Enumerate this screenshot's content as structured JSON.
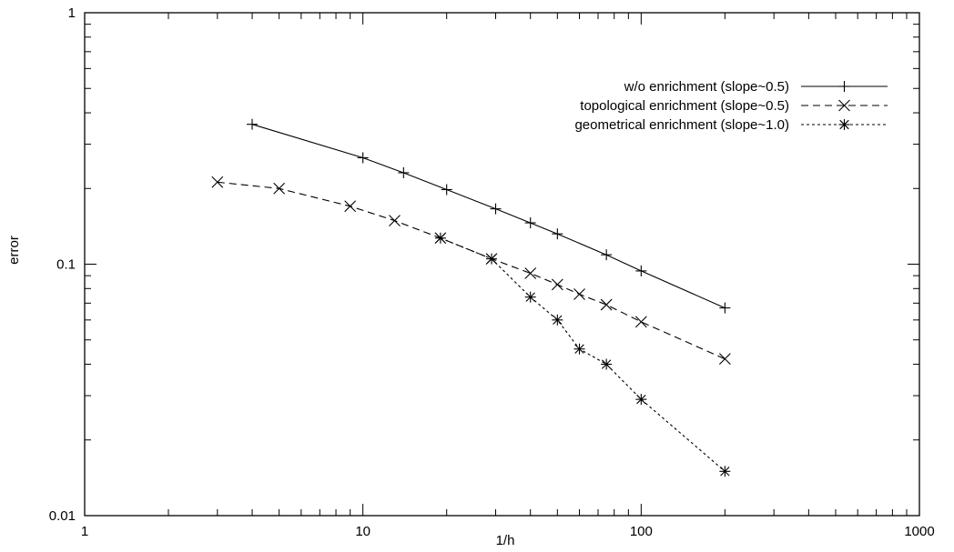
{
  "chart_data": {
    "type": "line",
    "title": "",
    "xlabel": "1/h",
    "ylabel": "error",
    "xscale": "log",
    "yscale": "log",
    "xlim": [
      1,
      1000
    ],
    "ylim": [
      0.01,
      1
    ],
    "grid": false,
    "legend_position": "top-right",
    "x_ticks": [
      {
        "value": 1,
        "label": "1"
      },
      {
        "value": 10,
        "label": "10"
      },
      {
        "value": 100,
        "label": "100"
      },
      {
        "value": 1000,
        "label": "1000"
      }
    ],
    "y_ticks": [
      {
        "value": 0.01,
        "label": "0.01"
      },
      {
        "value": 0.1,
        "label": "0.1"
      },
      {
        "value": 1,
        "label": "1"
      }
    ],
    "series": [
      {
        "name": "w/o enrichment (slope~0.5)",
        "line": "solid",
        "marker": "plus",
        "x": [
          4,
          10,
          14,
          20,
          30,
          40,
          50,
          75,
          100,
          200
        ],
        "y": [
          0.36,
          0.265,
          0.231,
          0.198,
          0.166,
          0.146,
          0.132,
          0.109,
          0.094,
          0.067
        ]
      },
      {
        "name": "topological enrichment (slope~0.5)",
        "line": "dashed",
        "marker": "cross",
        "x": [
          3,
          5,
          9,
          13,
          19,
          29,
          40,
          50,
          60,
          75,
          100,
          200
        ],
        "y": [
          0.212,
          0.2,
          0.17,
          0.149,
          0.127,
          0.105,
          0.092,
          0.083,
          0.076,
          0.069,
          0.059,
          0.042
        ]
      },
      {
        "name": "geometrical enrichment (slope~1.0)",
        "line": "dotted",
        "marker": "star",
        "x": [
          19,
          29,
          40,
          50,
          60,
          75,
          100,
          200
        ],
        "y": [
          0.127,
          0.105,
          0.074,
          0.06,
          0.046,
          0.04,
          0.029,
          0.015
        ]
      }
    ]
  }
}
